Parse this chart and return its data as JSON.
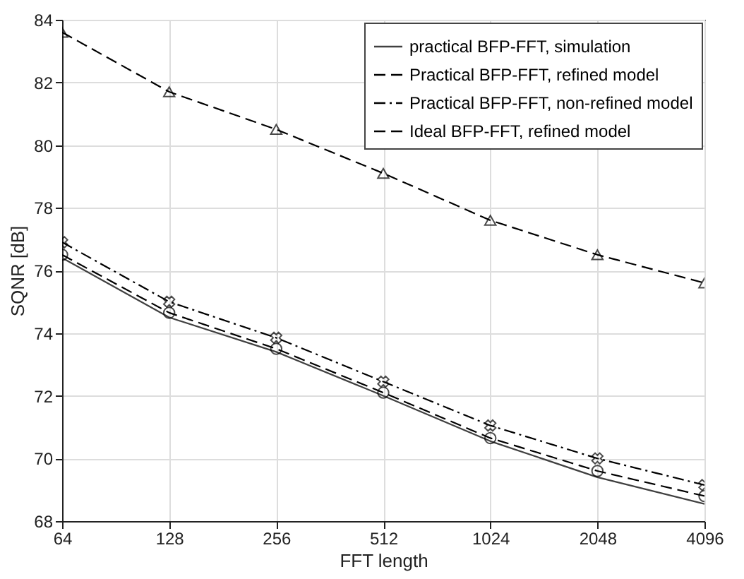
{
  "chart_data": {
    "type": "line",
    "xlabel": "FFT length",
    "ylabel": "SQNR [dB]",
    "log": "x",
    "x": [
      64,
      128,
      256,
      512,
      1024,
      2048,
      4096
    ],
    "xlim": [
      64,
      4096
    ],
    "xticks": [
      64,
      128,
      256,
      512,
      1024,
      2048,
      4096
    ],
    "ylim": [
      68,
      84
    ],
    "yticks": [
      68,
      70,
      72,
      74,
      76,
      78,
      80,
      82,
      84
    ],
    "grid": true,
    "legend": "top right",
    "series": [
      {
        "name": "practical BFP-FFT, simulation",
        "color": "#404040",
        "line_style": "solid",
        "marker": "none",
        "values": [
          76.4,
          74.5,
          73.4,
          72.0,
          70.55,
          69.4,
          68.55
        ]
      },
      {
        "name": "Practical BFP-FFT, refined model",
        "color": "#000000",
        "line_style": "dashed",
        "marker": "circle",
        "values": [
          76.5,
          74.65,
          73.5,
          72.1,
          70.65,
          69.6,
          68.8
        ]
      },
      {
        "name": "Practical BFP-FFT, non-refined model",
        "color": "#000000",
        "line_style": "dashdot",
        "marker": "cross",
        "values": [
          76.9,
          75.0,
          73.85,
          72.45,
          71.05,
          70.0,
          69.15
        ]
      },
      {
        "name": "Ideal BFP-FFT, refined model",
        "color": "#000000",
        "line_style": "dashed",
        "marker": "triangle",
        "values": [
          83.6,
          81.7,
          80.5,
          79.1,
          77.6,
          76.5,
          75.6
        ]
      }
    ]
  }
}
